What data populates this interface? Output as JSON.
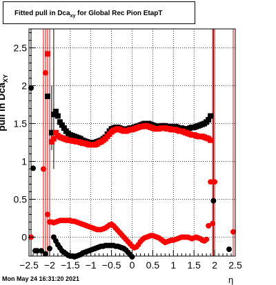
{
  "title": {
    "main": "Fitted pull in Dca",
    "sub": "xy",
    "rest": " for Global Rec Pion EtapT"
  },
  "ylabel": {
    "main": "pull in Dca",
    "sub": "XY"
  },
  "xlabel": "η",
  "timestamp": "Mon May 24 16:31:20 2021",
  "chart_data": {
    "type": "scatter",
    "title": "Fitted pull in Dca_xy for Global Rec Pion EtapT",
    "xlabel": "η",
    "ylabel": "pull in Dca_XY",
    "xlim": [
      -2.5,
      2.5
    ],
    "ylim": [
      -0.25,
      2.75
    ],
    "x_ticks": [
      -2.5,
      -2,
      -1.5,
      -1,
      -0.5,
      0,
      0.5,
      1,
      1.5,
      2,
      2.5
    ],
    "x_tick_labels": [
      "−2.5",
      "−2",
      "−1.5",
      "−1",
      "−0.5",
      "0",
      "0.5",
      "1",
      "1.5",
      "2",
      "2.5"
    ],
    "y_ticks": [
      0,
      0.5,
      1,
      1.5,
      2,
      2.5
    ],
    "y_tick_labels": [
      "0",
      "0.5",
      "1",
      "1.5",
      "2",
      "2.5"
    ],
    "grid": true,
    "series": [
      {
        "color": "#000000",
        "marker": "square",
        "x": [
          -2.05,
          -1.95,
          -1.9,
          -1.85,
          -1.8,
          -1.75,
          -1.7,
          -1.65,
          -1.6,
          -1.55,
          -1.5,
          -1.45,
          -1.4,
          -1.35,
          -1.3,
          -1.25,
          -1.2,
          -1.15,
          -1.1,
          -1.05,
          -1.0,
          -0.95,
          -0.9,
          -0.85,
          -0.8,
          -0.75,
          -0.7,
          -0.65,
          -0.6,
          -0.55,
          -0.5,
          -0.45,
          -0.4,
          -0.35,
          -0.3,
          -0.25,
          -0.2,
          -0.15,
          -0.1,
          -0.05,
          0.0,
          0.05,
          0.1,
          0.15,
          0.2,
          0.25,
          0.3,
          0.35,
          0.4,
          0.45,
          0.5,
          0.55,
          0.6,
          0.65,
          0.7,
          0.75,
          0.8,
          0.85,
          0.9,
          0.95,
          1.0,
          1.05,
          1.1,
          1.15,
          1.2,
          1.25,
          1.3,
          1.35,
          1.4,
          1.45,
          1.5,
          1.55,
          1.6,
          1.65,
          1.7,
          1.75,
          1.8,
          1.85,
          1.9
        ],
        "y": [
          1.86,
          1.38,
          1.62,
          1.66,
          1.6,
          1.52,
          1.48,
          1.44,
          1.4,
          1.37,
          1.35,
          1.34,
          1.33,
          1.32,
          1.31,
          1.3,
          1.28,
          1.27,
          1.26,
          1.25,
          1.25,
          1.24,
          1.25,
          1.26,
          1.27,
          1.28,
          1.3,
          1.32,
          1.36,
          1.4,
          1.43,
          1.44,
          1.45,
          1.45,
          1.44,
          1.43,
          1.42,
          1.42,
          1.43,
          1.44,
          1.44,
          1.45,
          1.46,
          1.47,
          1.48,
          1.49,
          1.5,
          1.5,
          1.5,
          1.49,
          1.48,
          1.47,
          1.46,
          1.46,
          1.47,
          1.47,
          1.47,
          1.46,
          1.46,
          1.46,
          1.46,
          1.46,
          1.45,
          1.44,
          1.44,
          1.43,
          1.42,
          1.43,
          1.44,
          1.45,
          1.45,
          1.46,
          1.47,
          1.48,
          1.49,
          1.5,
          1.52,
          1.55,
          1.6
        ]
      },
      {
        "color": "#ff0000",
        "marker": "square",
        "x": [
          -2.05,
          -1.95,
          -1.9,
          -1.85,
          -1.8,
          -1.75,
          -1.7,
          -1.65,
          -1.6,
          -1.55,
          -1.5,
          -1.45,
          -1.4,
          -1.35,
          -1.3,
          -1.25,
          -1.2,
          -1.15,
          -1.1,
          -1.05,
          -1.0,
          -0.95,
          -0.9,
          -0.85,
          -0.8,
          -0.75,
          -0.7,
          -0.65,
          -0.6,
          -0.55,
          -0.5,
          -0.45,
          -0.4,
          -0.35,
          -0.3,
          -0.25,
          -0.2,
          -0.15,
          -0.1,
          -0.05,
          0.0,
          0.05,
          0.1,
          0.15,
          0.2,
          0.25,
          0.3,
          0.35,
          0.4,
          0.45,
          0.5,
          0.55,
          0.6,
          0.65,
          0.7,
          0.75,
          0.8,
          0.85,
          0.9,
          0.95,
          1.0,
          1.05,
          1.1,
          1.15,
          1.2,
          1.25,
          1.3,
          1.35,
          1.4,
          1.45,
          1.5,
          1.55,
          1.6,
          1.65,
          1.7,
          1.75,
          1.8,
          1.85,
          1.9
        ],
        "y": [
          2.42,
          1.26,
          1.3,
          1.38,
          1.34,
          1.32,
          1.31,
          1.3,
          1.29,
          1.28,
          1.28,
          1.27,
          1.27,
          1.26,
          1.26,
          1.25,
          1.24,
          1.24,
          1.23,
          1.22,
          1.22,
          1.22,
          1.22,
          1.23,
          1.25,
          1.26,
          1.28,
          1.3,
          1.33,
          1.36,
          1.39,
          1.41,
          1.42,
          1.43,
          1.42,
          1.41,
          1.4,
          1.4,
          1.41,
          1.42,
          1.42,
          1.43,
          1.44,
          1.45,
          1.46,
          1.46,
          1.47,
          1.47,
          1.46,
          1.45,
          1.44,
          1.43,
          1.43,
          1.43,
          1.44,
          1.44,
          1.44,
          1.43,
          1.43,
          1.42,
          1.42,
          1.42,
          1.41,
          1.4,
          1.4,
          1.39,
          1.38,
          1.37,
          1.36,
          1.35,
          1.35,
          1.34,
          1.33,
          1.33,
          1.33,
          1.32,
          1.31,
          1.3,
          1.28
        ]
      },
      {
        "color": "#000000",
        "marker": "circle",
        "x": [
          -2.45,
          -2.4,
          -2.35,
          -2.3,
          -2.2,
          -2.1,
          -2.0,
          -1.9,
          -1.85,
          -1.8,
          -1.75,
          -1.7,
          -1.65,
          -1.6,
          -1.55,
          -1.5,
          -1.45,
          -1.4,
          -1.35,
          -1.3,
          -1.25,
          -1.2,
          -1.15,
          -1.1,
          -1.05,
          -1.0,
          -0.95,
          -0.9,
          -0.85,
          -0.8,
          -0.75,
          -0.7,
          -0.65,
          -0.6,
          -0.55,
          -0.5,
          -0.45,
          -0.4,
          -0.35,
          -0.3,
          -0.25,
          -0.2,
          -0.15,
          -0.1,
          -0.05,
          0.0,
          1.97,
          2.35
        ],
        "y": [
          1.97,
          0.91,
          -0.18,
          -0.18,
          -0.18,
          -0.22,
          -0.15,
          0.0,
          -0.05,
          -0.1,
          -0.14,
          -0.18,
          -0.2,
          -0.22,
          -0.24,
          -0.25,
          -0.25,
          -0.26,
          -0.25,
          -0.24,
          -0.23,
          -0.21,
          -0.2,
          -0.19,
          -0.18,
          -0.17,
          -0.16,
          -0.15,
          -0.14,
          -0.13,
          -0.12,
          -0.12,
          -0.11,
          -0.11,
          -0.11,
          -0.11,
          -0.11,
          -0.12,
          -0.12,
          -0.13,
          -0.14,
          -0.15,
          -0.17,
          -0.2,
          -0.23,
          -0.26,
          0.48,
          -0.16
        ]
      },
      {
        "color": "#ff0000",
        "marker": "circle",
        "x": [
          -2.45,
          -2.15,
          -2.1,
          -2.05,
          -2.0,
          -1.95,
          -1.9,
          -1.85,
          -1.8,
          -1.75,
          -1.7,
          -1.65,
          -1.6,
          -1.55,
          -1.5,
          -1.45,
          -1.4,
          -1.35,
          -1.3,
          -1.25,
          -1.2,
          -1.15,
          -1.1,
          -1.05,
          -1.0,
          -0.95,
          -0.9,
          -0.85,
          -0.8,
          -0.75,
          -0.7,
          -0.65,
          -0.6,
          -0.55,
          -0.5,
          -0.45,
          -0.4,
          -0.35,
          -0.3,
          -0.25,
          -0.2,
          -0.15,
          -0.1,
          -0.05,
          0.0,
          0.05,
          0.1,
          0.15,
          0.2,
          0.25,
          0.3,
          0.35,
          0.4,
          0.45,
          0.5,
          0.55,
          0.6,
          0.65,
          0.7,
          0.75,
          0.8,
          0.85,
          0.9,
          0.95,
          1.0,
          1.05,
          1.1,
          1.15,
          1.2,
          1.25,
          1.3,
          1.35,
          1.4,
          1.45,
          1.5,
          1.55,
          1.6,
          1.65,
          1.7,
          1.75,
          1.8,
          1.85,
          1.9,
          1.95,
          2.0,
          2.45
        ],
        "y": [
          0.0,
          0.9,
          2.17,
          0.3,
          0.2,
          0.2,
          0.19,
          0.2,
          0.21,
          0.22,
          0.22,
          0.22,
          0.22,
          0.22,
          0.22,
          0.21,
          0.21,
          0.2,
          0.19,
          0.18,
          0.17,
          0.16,
          0.15,
          0.14,
          0.13,
          0.12,
          0.11,
          0.1,
          0.1,
          0.1,
          0.11,
          0.12,
          0.14,
          0.16,
          0.17,
          0.15,
          0.12,
          0.09,
          0.06,
          0.03,
          0.0,
          -0.03,
          -0.06,
          -0.09,
          -0.12,
          -0.14,
          -0.13,
          -0.1,
          -0.06,
          -0.03,
          -0.01,
          0.0,
          0.01,
          0.02,
          0.02,
          0.01,
          0.0,
          -0.01,
          -0.03,
          -0.05,
          -0.07,
          -0.06,
          -0.05,
          -0.04,
          -0.04,
          -0.03,
          -0.02,
          -0.01,
          0.0,
          0.0,
          0.0,
          0.0,
          -0.01,
          -0.02,
          -0.01,
          0.0,
          -0.01,
          -0.02,
          -0.04,
          -0.05,
          -0.03,
          0.15,
          0.73,
          0.18,
          0.73,
          0.07
        ]
      }
    ],
    "error_bars": [
      {
        "color": "#ff0000",
        "x": -2.0,
        "y_low": -0.25,
        "y_high": 2.75
      },
      {
        "color": "#ff0000",
        "x": -2.05,
        "y_low": -0.25,
        "y_high": 2.75
      },
      {
        "color": "#ff0000",
        "x": -2.1,
        "y_low": -0.25,
        "y_high": 2.75
      },
      {
        "color": "#ff0000",
        "x": -2.15,
        "y_low": -0.25,
        "y_high": 2.75
      },
      {
        "color": "#000000",
        "x": -1.95,
        "y_low": 1.15,
        "y_high": 2.0
      },
      {
        "color": "#000000",
        "x": -1.9,
        "y_low": 0.9,
        "y_high": 2.75
      },
      {
        "color": "#ff0000",
        "x": 1.95,
        "y_low": -0.25,
        "y_high": 2.75
      },
      {
        "color": "#ff0000",
        "x": 2.0,
        "y_low": -0.25,
        "y_high": 2.75
      },
      {
        "color": "#000000",
        "x": 1.97,
        "y_low": -0.25,
        "y_high": 2.75
      },
      {
        "color": "#ff0000",
        "x": 2.45,
        "y_low": -0.25,
        "y_high": 2.75
      },
      {
        "color": "#000000",
        "x": -2.45,
        "y_low": -0.25,
        "y_high": 2.75
      }
    ]
  }
}
